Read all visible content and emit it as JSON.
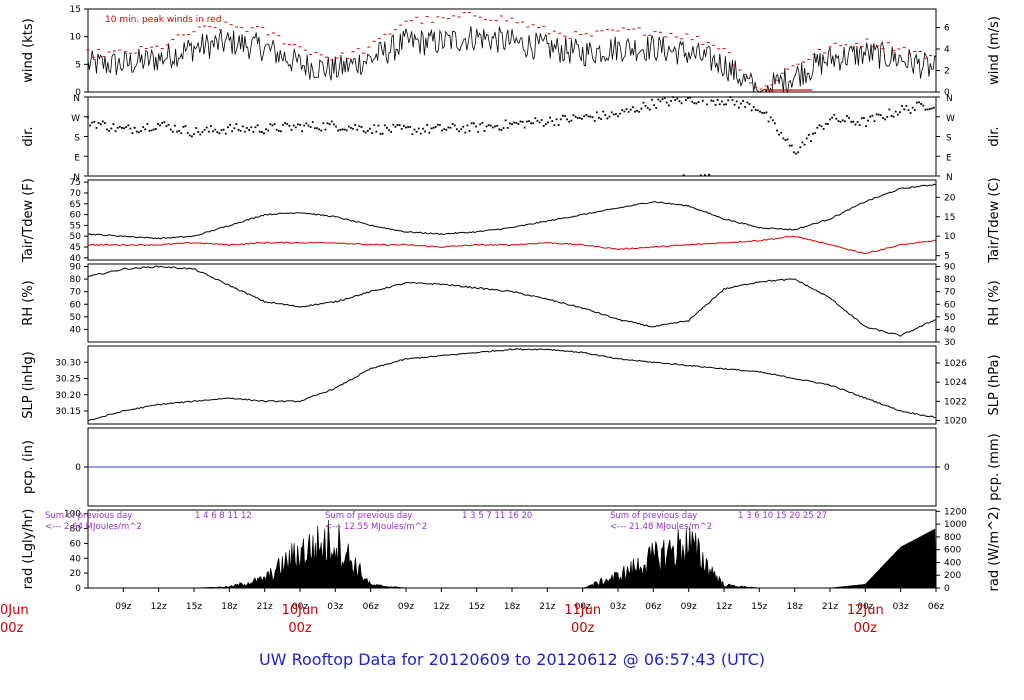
{
  "title": "UW Rooftop Data for 20120609  to  20120612 @ 06:57:43  (UTC)",
  "colors": {
    "frame": "#000000",
    "trace": "#000000",
    "peak": "#dd0000",
    "dewpoint": "#dd0000",
    "precip": "#3333dd",
    "title": "#2222cc",
    "annotation": "#9933cc",
    "daylabel": "#cc0000"
  },
  "time_axis": {
    "hour_ticks": [
      "09z",
      "12z",
      "15z",
      "18z",
      "21z",
      "00z",
      "03z",
      "06z",
      "09z",
      "12z",
      "15z",
      "18z",
      "21z",
      "00z",
      "03z",
      "06z",
      "09z",
      "12z",
      "15z",
      "18z",
      "21z",
      "00z",
      "03z",
      "06z"
    ],
    "day_labels": [
      {
        "date": "10Jun",
        "hour": "00z"
      },
      {
        "date": "11Jun",
        "hour": "00z"
      },
      {
        "date": "12Jun",
        "hour": "00z"
      }
    ],
    "clipped_label": {
      "date": "0Jun",
      "hour": "00z"
    }
  },
  "chart_data": [
    {
      "type": "line",
      "panel": "wind",
      "ylabel_left": "wind (kts)",
      "ylabel_right": "wind (m/s)",
      "left_ticks": [
        "15",
        "10",
        "5",
        "0"
      ],
      "right_ticks": [
        "6",
        "4",
        "2",
        "0"
      ],
      "ylim": [
        0,
        15
      ],
      "annotation": "10 min. peak winds in red",
      "x_hours": [
        0,
        3,
        6,
        9,
        12,
        15,
        18,
        21,
        24,
        27,
        30,
        33,
        36,
        39,
        42,
        45,
        48,
        51,
        54,
        57,
        60,
        63,
        66,
        69,
        72
      ],
      "series": [
        {
          "values": [
            5,
            5,
            6,
            8,
            9,
            8,
            5,
            4,
            6,
            9,
            9,
            10,
            9,
            8,
            7,
            8,
            8,
            7,
            5,
            0,
            3,
            6,
            7,
            6,
            4
          ]
        }
      ],
      "peak_values": [
        7,
        7,
        8,
        11,
        12,
        11,
        8,
        6,
        8,
        13,
        13,
        14,
        13,
        11,
        10,
        11,
        11,
        10,
        8,
        0,
        5,
        8,
        9,
        8,
        6
      ]
    },
    {
      "type": "scatter",
      "panel": "dir",
      "ylabel_left": "dir.",
      "ylabel_right": "dir.",
      "left_ticks": [
        "N",
        "W",
        "S",
        "E",
        "N"
      ],
      "right_ticks": [
        "N",
        "W",
        "S",
        "E",
        "N"
      ],
      "ylim": [
        0,
        360
      ],
      "x_hours": [
        0,
        3,
        6,
        9,
        12,
        15,
        18,
        21,
        24,
        27,
        30,
        33,
        36,
        39,
        42,
        45,
        48,
        51,
        54,
        57,
        60,
        63,
        66,
        69,
        72
      ],
      "values": [
        250,
        210,
        235,
        200,
        215,
        215,
        225,
        230,
        215,
        210,
        215,
        220,
        235,
        250,
        265,
        280,
        330,
        350,
        345,
        310,
        110,
        260,
        245,
        300,
        330
      ]
    },
    {
      "type": "line",
      "panel": "temperature",
      "ylabel_left": "Tair/Tdew (F)",
      "ylabel_right": "Tair/Tdew (C)",
      "left_ticks": [
        "75",
        "70",
        "65",
        "60",
        "55",
        "50",
        "45",
        "40"
      ],
      "right_ticks": [
        "20",
        "15",
        "10",
        "5"
      ],
      "ylim": [
        39,
        76
      ],
      "x_hours": [
        0,
        3,
        6,
        9,
        12,
        15,
        18,
        21,
        24,
        27,
        30,
        33,
        36,
        39,
        42,
        45,
        48,
        51,
        54,
        57,
        60,
        63,
        66,
        69,
        72
      ],
      "series": [
        {
          "name": "Tair",
          "values": [
            51,
            50,
            49,
            50,
            55,
            60,
            61,
            59,
            55,
            52,
            51,
            52,
            54,
            57,
            60,
            63,
            66,
            64,
            58,
            54,
            53,
            58,
            66,
            72,
            74
          ]
        },
        {
          "name": "Tdew",
          "values": [
            46,
            46,
            46,
            47,
            46,
            47,
            47,
            47,
            46,
            46,
            45,
            46,
            46,
            47,
            46,
            44,
            45,
            46,
            47,
            48,
            50,
            46,
            42,
            46,
            48
          ]
        }
      ]
    },
    {
      "type": "line",
      "panel": "rh",
      "ylabel_left": "RH (%)",
      "ylabel_right": "RH (%)",
      "left_ticks": [
        "90",
        "80",
        "70",
        "60",
        "50",
        "40"
      ],
      "right_ticks": [
        "90",
        "80",
        "70",
        "60",
        "50",
        "40",
        "30"
      ],
      "ylim": [
        30,
        92
      ],
      "x_hours": [
        0,
        3,
        6,
        9,
        12,
        15,
        18,
        21,
        24,
        27,
        30,
        33,
        36,
        39,
        42,
        45,
        48,
        51,
        54,
        57,
        60,
        63,
        66,
        69,
        72
      ],
      "series": [
        {
          "values": [
            82,
            88,
            90,
            88,
            75,
            62,
            58,
            62,
            70,
            77,
            76,
            73,
            70,
            64,
            57,
            48,
            42,
            47,
            72,
            78,
            80,
            65,
            42,
            35,
            48
          ]
        }
      ]
    },
    {
      "type": "line",
      "panel": "slp",
      "ylabel_left": "SLP (inHg)",
      "ylabel_right": "SLP (hPa)",
      "left_ticks": [
        "30.30",
        "30.25",
        "30.20",
        "30.15"
      ],
      "right_ticks": [
        "1026",
        "1024",
        "1022",
        "1020"
      ],
      "ylim": [
        30.11,
        30.35
      ],
      "x_hours": [
        0,
        3,
        6,
        9,
        12,
        15,
        18,
        21,
        24,
        27,
        30,
        33,
        36,
        39,
        42,
        45,
        48,
        51,
        54,
        57,
        60,
        63,
        66,
        69,
        72
      ],
      "series": [
        {
          "values": [
            30.12,
            30.15,
            30.17,
            30.18,
            30.19,
            30.18,
            30.18,
            30.22,
            30.28,
            30.31,
            30.32,
            30.33,
            30.34,
            30.34,
            30.33,
            30.31,
            30.3,
            30.29,
            30.28,
            30.27,
            30.25,
            30.23,
            30.19,
            30.15,
            30.13
          ]
        }
      ]
    },
    {
      "type": "line",
      "panel": "pcp",
      "ylabel_left": "pcp. (in)",
      "ylabel_right": "pcp. (mm)",
      "left_ticks": [
        "0"
      ],
      "right_ticks": [
        "0"
      ],
      "ylim": [
        -1,
        1
      ],
      "series": [
        {
          "values": [
            0,
            0
          ]
        }
      ]
    },
    {
      "type": "area",
      "panel": "rad",
      "ylabel_left": "rad (Lgly/hr)",
      "ylabel_right": "rad (W/m^2)",
      "left_ticks": [
        "100",
        "80",
        "60",
        "40",
        "20",
        "0"
      ],
      "right_ticks": [
        "1200",
        "1000",
        "800",
        "600",
        "400",
        "200",
        "0"
      ],
      "ylim": [
        0,
        105
      ],
      "x_hours": [
        0,
        3,
        6,
        9,
        12,
        15,
        18,
        21,
        24,
        27,
        30,
        33,
        36,
        39,
        42,
        45,
        48,
        51,
        54,
        57,
        60,
        63,
        66,
        69,
        72
      ],
      "series": [
        {
          "values": [
            0,
            0,
            0,
            0,
            2,
            15,
            60,
            80,
            5,
            0,
            0,
            0,
            0,
            0,
            0,
            20,
            50,
            75,
            5,
            0,
            0,
            0,
            5,
            55,
            80
          ]
        }
      ],
      "annotations": [
        {
          "line1": "Sum of previous day",
          "line2": "<--- 2.64 MJoules/m^2",
          "hours": "1  4  6  8   11  12"
        },
        {
          "line1": "Sum of previous day",
          "line2": "<--- 12.55 MJoules/m^2",
          "hours": "1  3  5  7  11  16  20"
        },
        {
          "line1": "Sum of previous day",
          "line2": "<--- 21.48 MJoules/m^2",
          "hours": "1  3  6  10  15  20  25  27"
        }
      ]
    }
  ]
}
